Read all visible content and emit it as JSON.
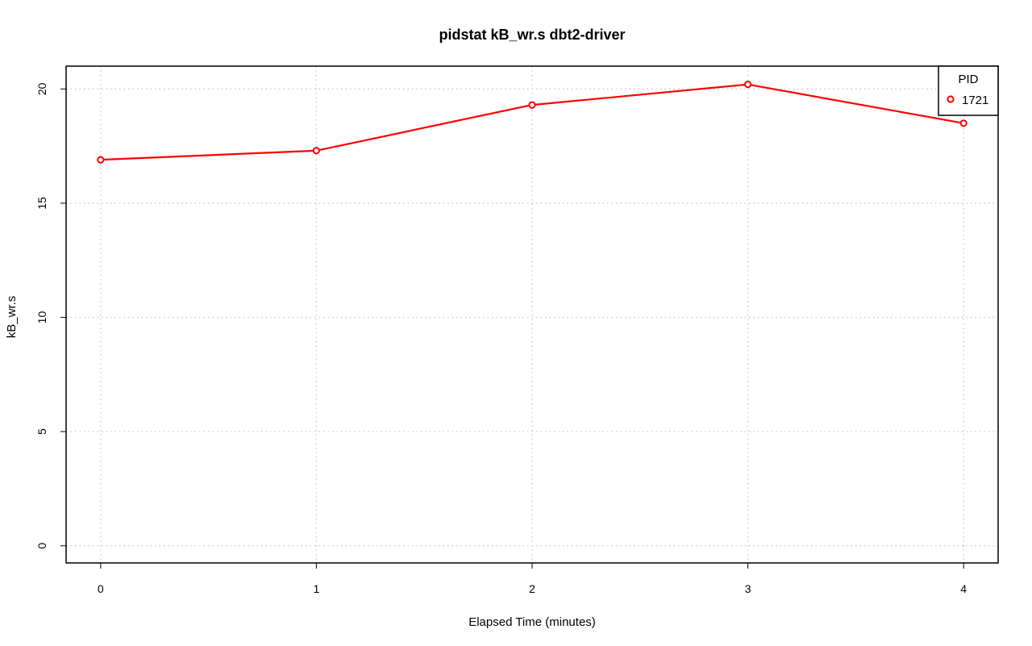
{
  "chart_data": {
    "type": "line",
    "title": "pidstat kB_wr.s dbt2-driver",
    "xlabel": "Elapsed Time (minutes)",
    "ylabel": "kB_wr.s",
    "x": [
      0,
      1,
      2,
      3,
      4
    ],
    "series": [
      {
        "name": "1721",
        "values": [
          16.9,
          17.3,
          19.3,
          20.2,
          18.5
        ],
        "color": "#ff0000"
      }
    ],
    "xlim": [
      -0.16,
      4.16
    ],
    "ylim": [
      -0.75,
      21.0
    ],
    "xticks": [
      "0",
      "1",
      "2",
      "3",
      "4"
    ],
    "yticks": [
      "0",
      "5",
      "10",
      "15",
      "20"
    ],
    "grid": true,
    "legend": {
      "title": "PID",
      "placement": "top-right"
    }
  }
}
